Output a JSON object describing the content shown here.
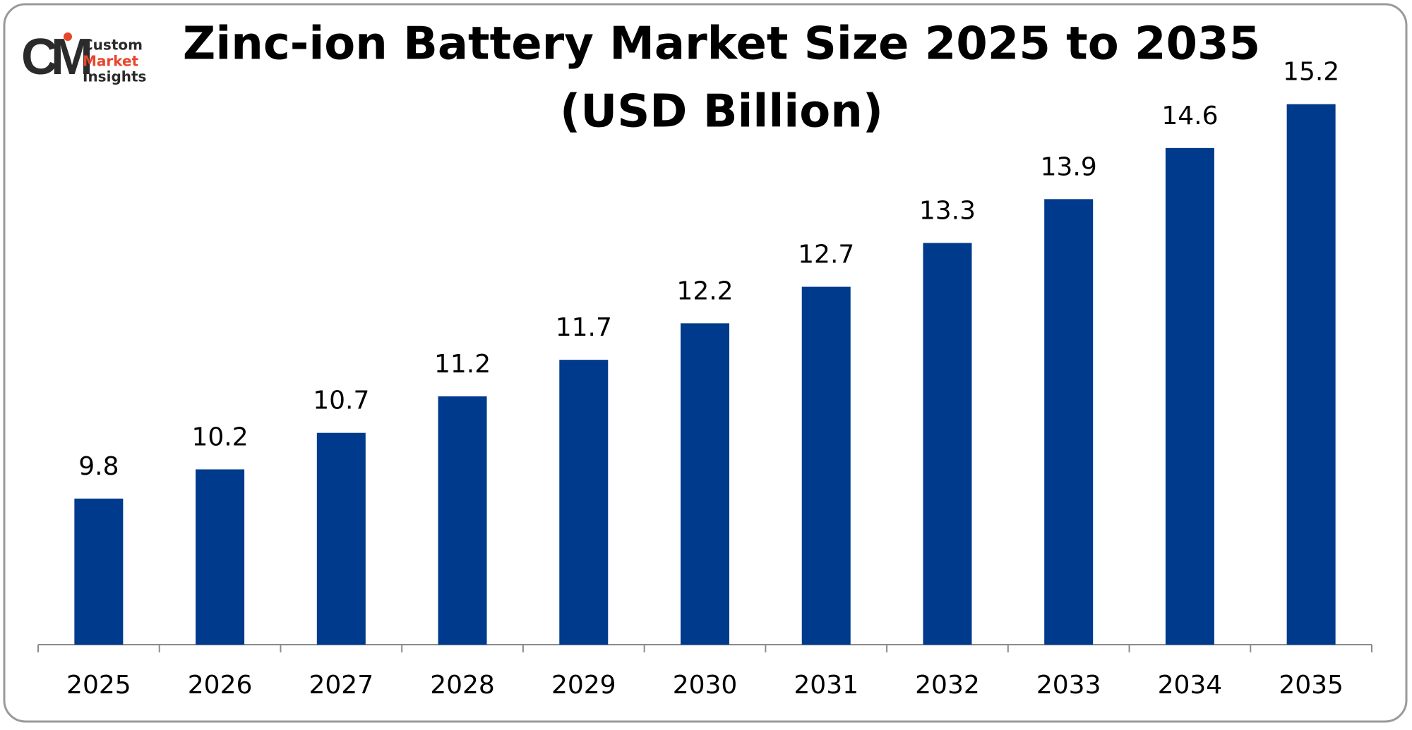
{
  "logo": {
    "monogram": "CM",
    "lines": [
      "Custom",
      "Market",
      "Insights"
    ]
  },
  "chart_data": {
    "type": "bar",
    "title": "Zinc-ion Battery Market Size 2025 to 2035",
    "subtitle": "(USD Billion)",
    "categories": [
      "2025",
      "2026",
      "2027",
      "2028",
      "2029",
      "2030",
      "2031",
      "2032",
      "2033",
      "2034",
      "2035"
    ],
    "values": [
      9.8,
      10.2,
      10.7,
      11.2,
      11.7,
      12.2,
      12.7,
      13.3,
      13.9,
      14.6,
      15.2
    ],
    "color": "#003a8c",
    "ylim": [
      7.8,
      15.4
    ]
  }
}
